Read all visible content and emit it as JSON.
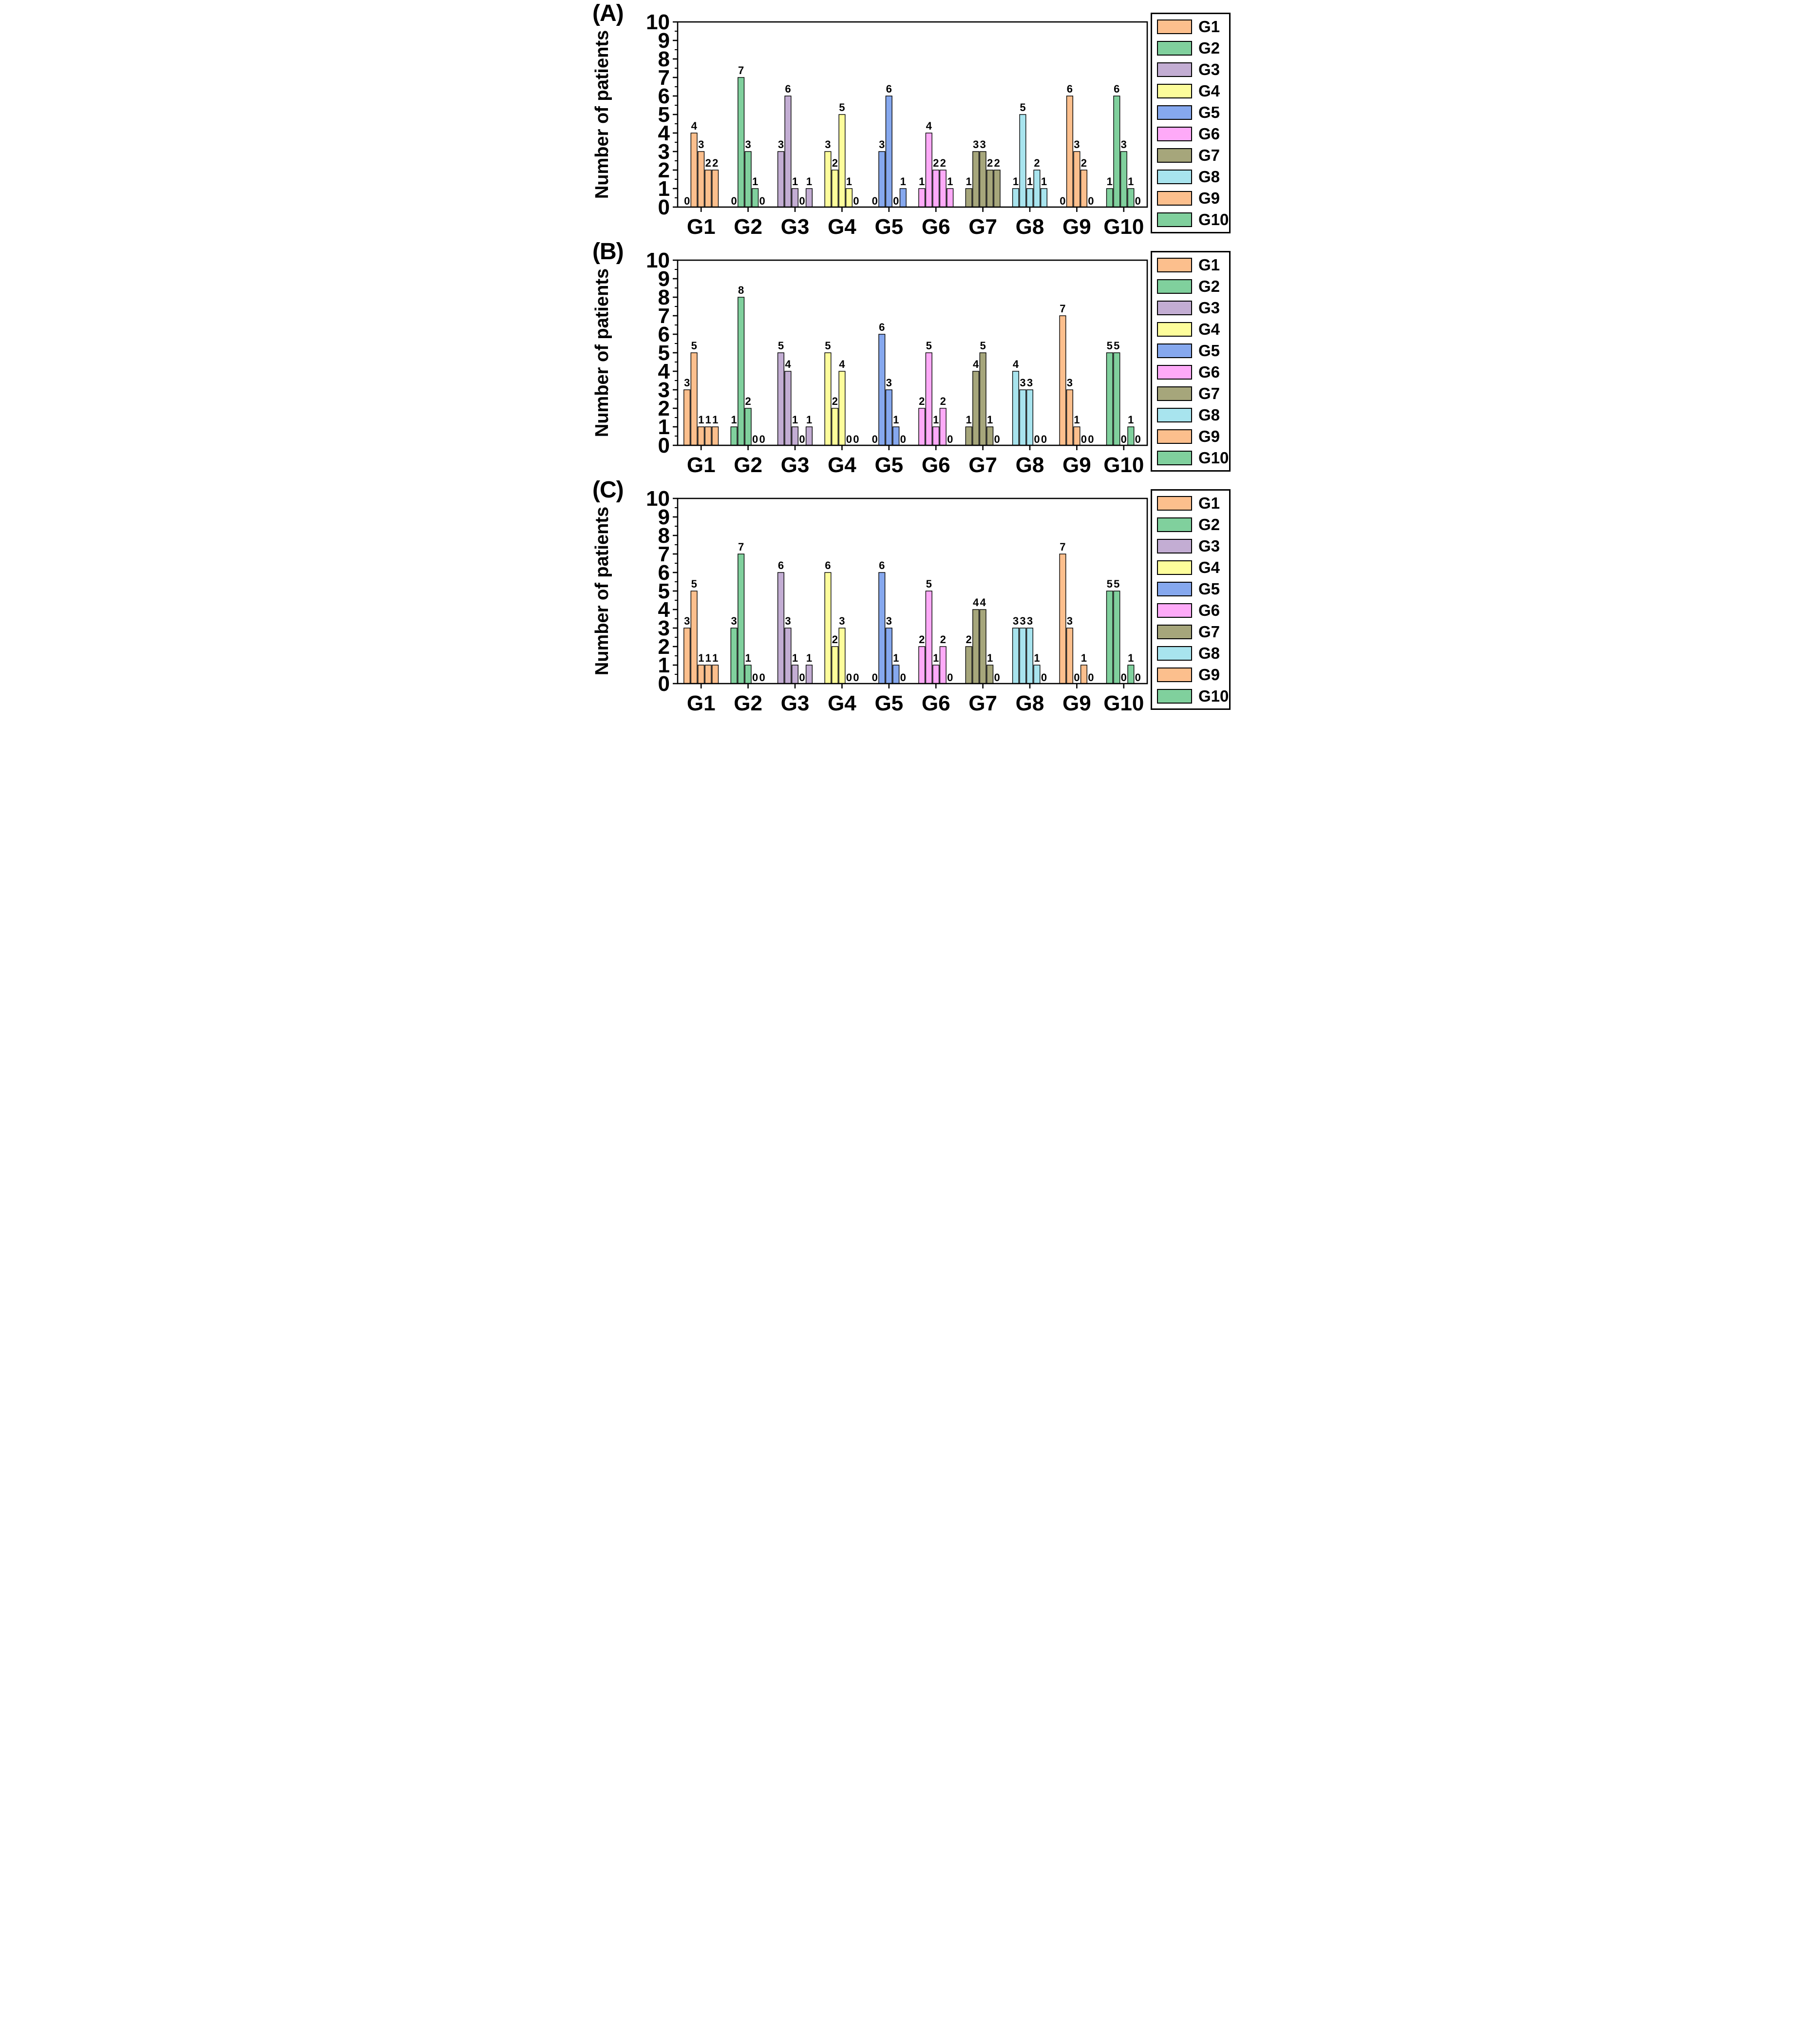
{
  "figure": {
    "background_color": "#ffffff",
    "panels_count": 3,
    "description_visible_text_only": true
  },
  "colors": {
    "G1": "#fcbf8d",
    "G2": "#80d09d",
    "G3": "#c3add3",
    "G4": "#fdfd9b",
    "G5": "#86a8ee",
    "G6": "#feaaf8",
    "G7": "#a6a67b",
    "G8": "#a8e4ee",
    "G9": "#fcbf8d",
    "G10": "#80d09d",
    "axis": "#000000",
    "bar_outline": "#000000",
    "text": "#000000"
  },
  "legend": {
    "position": "right",
    "entries": [
      {
        "label": "G1",
        "color": "#fcbf8d"
      },
      {
        "label": "G2",
        "color": "#80d09d"
      },
      {
        "label": "G3",
        "color": "#c3add3"
      },
      {
        "label": "G4",
        "color": "#fdfd9b"
      },
      {
        "label": "G5",
        "color": "#86a8ee"
      },
      {
        "label": "G6",
        "color": "#feaaf8"
      },
      {
        "label": "G7",
        "color": "#a6a67b"
      },
      {
        "label": "G8",
        "color": "#a8e4ee"
      },
      {
        "label": "G9",
        "color": "#fcbf8d"
      },
      {
        "label": "G10",
        "color": "#80d09d"
      }
    ]
  },
  "chart_data": [
    {
      "type": "bar",
      "panel_label": "(A)",
      "title": "",
      "xlabel": "",
      "ylabel": "Number of patients",
      "ylim": [
        0,
        10
      ],
      "yticks": [
        0,
        1,
        2,
        3,
        4,
        5,
        6,
        7,
        8,
        9,
        10
      ],
      "minor_tick_step": 0.5,
      "grid": false,
      "bars_per_group": 5,
      "value_labels_shown": true,
      "categories": [
        "G1",
        "G2",
        "G3",
        "G4",
        "G5",
        "G6",
        "G7",
        "G8",
        "G9",
        "G10"
      ],
      "groups": [
        [
          0,
          4,
          3,
          2,
          2
        ],
        [
          0,
          7,
          3,
          1,
          0
        ],
        [
          3,
          6,
          1,
          0,
          1
        ],
        [
          3,
          2,
          5,
          1,
          0
        ],
        [
          0,
          3,
          6,
          0,
          1
        ],
        [
          1,
          4,
          2,
          2,
          1
        ],
        [
          1,
          3,
          3,
          2,
          2
        ],
        [
          1,
          5,
          1,
          2,
          1
        ],
        [
          0,
          6,
          3,
          2,
          0
        ],
        [
          1,
          6,
          3,
          1,
          0
        ]
      ]
    },
    {
      "type": "bar",
      "panel_label": "(B)",
      "title": "",
      "xlabel": "",
      "ylabel": "Number of patients",
      "ylim": [
        0,
        10
      ],
      "yticks": [
        0,
        1,
        2,
        3,
        4,
        5,
        6,
        7,
        8,
        9,
        10
      ],
      "minor_tick_step": 0.5,
      "grid": false,
      "bars_per_group": 5,
      "value_labels_shown": true,
      "categories": [
        "G1",
        "G2",
        "G3",
        "G4",
        "G5",
        "G6",
        "G7",
        "G8",
        "G9",
        "G10"
      ],
      "groups": [
        [
          3,
          5,
          1,
          1,
          1
        ],
        [
          1,
          8,
          2,
          0,
          0
        ],
        [
          5,
          4,
          1,
          0,
          1
        ],
        [
          5,
          2,
          4,
          0,
          0
        ],
        [
          0,
          6,
          3,
          1,
          0
        ],
        [
          2,
          5,
          1,
          2,
          0
        ],
        [
          1,
          4,
          5,
          1,
          0
        ],
        [
          4,
          3,
          3,
          0,
          0
        ],
        [
          7,
          3,
          1,
          0,
          0
        ],
        [
          5,
          5,
          0,
          1,
          0
        ]
      ]
    },
    {
      "type": "bar",
      "panel_label": "(C)",
      "title": "",
      "xlabel": "",
      "ylabel": "Number of patients",
      "ylim": [
        0,
        10
      ],
      "yticks": [
        0,
        1,
        2,
        3,
        4,
        5,
        6,
        7,
        8,
        9,
        10
      ],
      "minor_tick_step": 0.5,
      "grid": false,
      "bars_per_group": 5,
      "value_labels_shown": true,
      "categories": [
        "G1",
        "G2",
        "G3",
        "G4",
        "G5",
        "G6",
        "G7",
        "G8",
        "G9",
        "G10"
      ],
      "groups": [
        [
          3,
          5,
          1,
          1,
          1
        ],
        [
          3,
          7,
          1,
          0,
          0
        ],
        [
          6,
          3,
          1,
          0,
          1
        ],
        [
          6,
          2,
          3,
          0,
          0
        ],
        [
          0,
          6,
          3,
          1,
          0
        ],
        [
          2,
          5,
          1,
          2,
          0
        ],
        [
          2,
          4,
          4,
          1,
          0
        ],
        [
          3,
          3,
          3,
          1,
          0
        ],
        [
          7,
          3,
          0,
          1,
          0
        ],
        [
          5,
          5,
          0,
          1,
          0
        ]
      ]
    }
  ]
}
